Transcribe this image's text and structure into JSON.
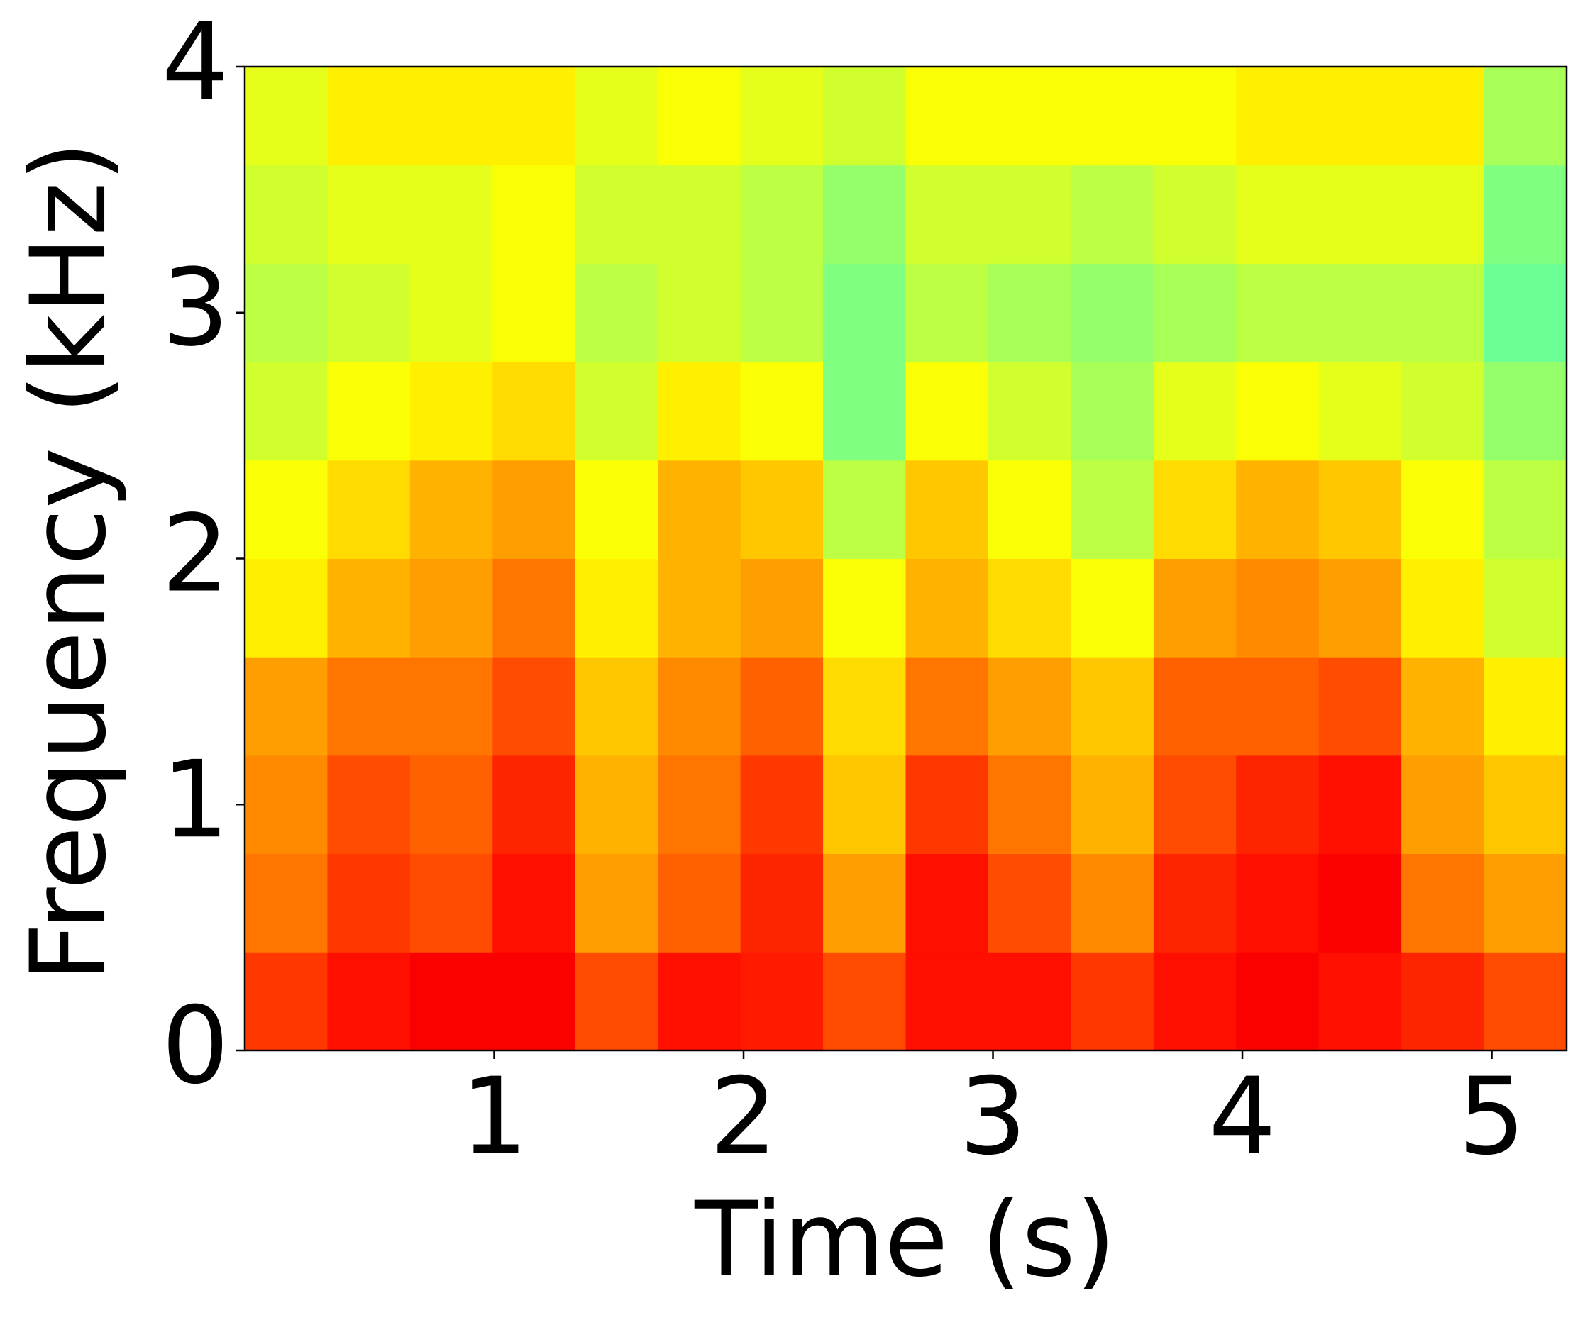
{
  "chart_data": {
    "type": "heatmap",
    "xlabel": "Time (s)",
    "ylabel": "Frequency (kHz)",
    "xlim": [
      0,
      5.3
    ],
    "xticks": [
      1,
      2,
      3,
      4,
      5
    ],
    "ylim": [
      0,
      4
    ],
    "yticks": [
      0,
      1,
      2,
      3,
      4
    ],
    "colormap": "jet",
    "zlim": [
      0,
      1
    ],
    "z": [
      [
        0.82,
        0.86,
        0.88,
        0.88,
        0.8,
        0.86,
        0.85,
        0.8,
        0.86,
        0.86,
        0.82,
        0.86,
        0.88,
        0.86,
        0.84,
        0.8
      ],
      [
        0.76,
        0.82,
        0.8,
        0.86,
        0.72,
        0.78,
        0.84,
        0.72,
        0.86,
        0.8,
        0.74,
        0.84,
        0.86,
        0.88,
        0.76,
        0.72
      ],
      [
        0.74,
        0.8,
        0.78,
        0.84,
        0.7,
        0.76,
        0.82,
        0.68,
        0.82,
        0.76,
        0.7,
        0.8,
        0.84,
        0.86,
        0.72,
        0.68
      ],
      [
        0.72,
        0.76,
        0.76,
        0.8,
        0.68,
        0.74,
        0.78,
        0.66,
        0.76,
        0.72,
        0.68,
        0.78,
        0.78,
        0.8,
        0.7,
        0.64
      ],
      [
        0.64,
        0.7,
        0.72,
        0.76,
        0.64,
        0.7,
        0.72,
        0.62,
        0.7,
        0.66,
        0.62,
        0.72,
        0.74,
        0.72,
        0.64,
        0.58
      ],
      [
        0.62,
        0.66,
        0.7,
        0.72,
        0.62,
        0.7,
        0.68,
        0.56,
        0.68,
        0.62,
        0.56,
        0.66,
        0.7,
        0.68,
        0.62,
        0.56
      ],
      [
        0.58,
        0.62,
        0.64,
        0.66,
        0.58,
        0.64,
        0.62,
        0.5,
        0.62,
        0.58,
        0.54,
        0.6,
        0.62,
        0.6,
        0.58,
        0.52
      ],
      [
        0.56,
        0.58,
        0.6,
        0.62,
        0.56,
        0.58,
        0.56,
        0.5,
        0.56,
        0.54,
        0.52,
        0.54,
        0.56,
        0.56,
        0.56,
        0.48
      ],
      [
        0.58,
        0.6,
        0.6,
        0.62,
        0.58,
        0.58,
        0.56,
        0.52,
        0.58,
        0.58,
        0.56,
        0.58,
        0.6,
        0.6,
        0.6,
        0.5
      ],
      [
        0.6,
        0.64,
        0.64,
        0.64,
        0.6,
        0.62,
        0.6,
        0.58,
        0.62,
        0.62,
        0.62,
        0.62,
        0.64,
        0.64,
        0.64,
        0.54
      ]
    ]
  }
}
